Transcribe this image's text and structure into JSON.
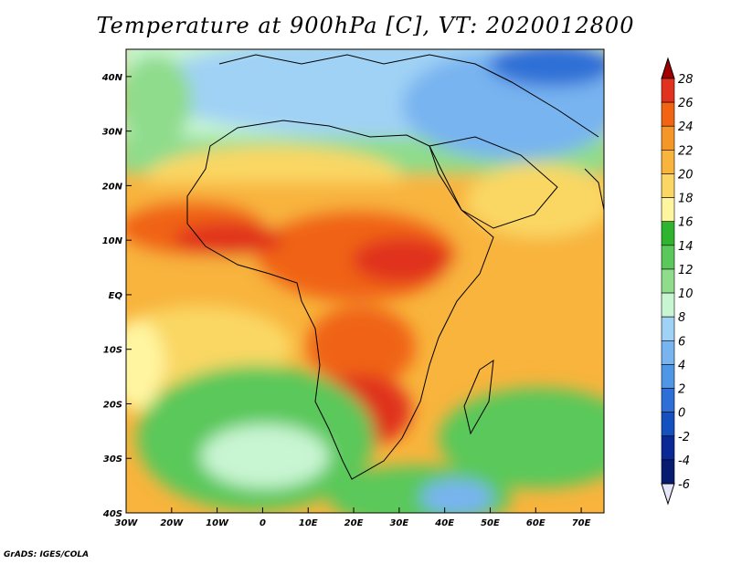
{
  "title": "Temperature at 900hPa [C], VT: 2020012800",
  "footer": "GrADS: IGES/COLA",
  "map": {
    "lon_range": [
      -30,
      75
    ],
    "lat_range": [
      -40,
      45
    ],
    "x_ticks": [
      {
        "value": -30,
        "label": "30W"
      },
      {
        "value": -20,
        "label": "20W"
      },
      {
        "value": -10,
        "label": "10W"
      },
      {
        "value": 0,
        "label": "0"
      },
      {
        "value": 10,
        "label": "10E"
      },
      {
        "value": 20,
        "label": "20E"
      },
      {
        "value": 30,
        "label": "30E"
      },
      {
        "value": 40,
        "label": "40E"
      },
      {
        "value": 50,
        "label": "50E"
      },
      {
        "value": 60,
        "label": "60E"
      },
      {
        "value": 70,
        "label": "70E"
      }
    ],
    "y_ticks": [
      {
        "value": 40,
        "label": "40N"
      },
      {
        "value": 30,
        "label": "30N"
      },
      {
        "value": 20,
        "label": "20N"
      },
      {
        "value": 10,
        "label": "10N"
      },
      {
        "value": 0,
        "label": "EQ"
      },
      {
        "value": -10,
        "label": "10S"
      },
      {
        "value": -20,
        "label": "20S"
      },
      {
        "value": -30,
        "label": "30S"
      },
      {
        "value": -40,
        "label": "40S"
      }
    ]
  },
  "colorbar": {
    "labels": [
      "28",
      "26",
      "24",
      "22",
      "20",
      "18",
      "16",
      "14",
      "12",
      "10",
      "8",
      "6",
      "4",
      "2",
      "0",
      "-2",
      "-4",
      "-6"
    ],
    "colors": [
      "#a00000",
      "#e0321e",
      "#f06414",
      "#f59628",
      "#f8b43c",
      "#fad764",
      "#fff5a0",
      "#2eb42e",
      "#5ac85a",
      "#8fdc8c",
      "#c8f5d2",
      "#a0d2f5",
      "#78b4f0",
      "#5096e6",
      "#2d6fd6",
      "#1450be",
      "#0a2896",
      "#071c70",
      "#e6e6fa"
    ]
  },
  "chart_data": {
    "type": "heatmap",
    "title": "Temperature at 900hPa [C], VT: 2020012800",
    "x_range": [
      -30,
      75
    ],
    "y_range": [
      -40,
      45
    ],
    "levels": [
      -6,
      -4,
      -2,
      0,
      2,
      4,
      6,
      8,
      10,
      12,
      14,
      16,
      18,
      20,
      22,
      24,
      26,
      28
    ],
    "regions": [
      {
        "name": "",
        "value": 6
      },
      {
        "name": "",
        "value": 0
      },
      {
        "name": "",
        "value": 12
      },
      {
        "name": "",
        "value": 22
      },
      {
        "name": "",
        "value": 26
      },
      {
        "name": "",
        "value": 26
      }
    ]
  }
}
